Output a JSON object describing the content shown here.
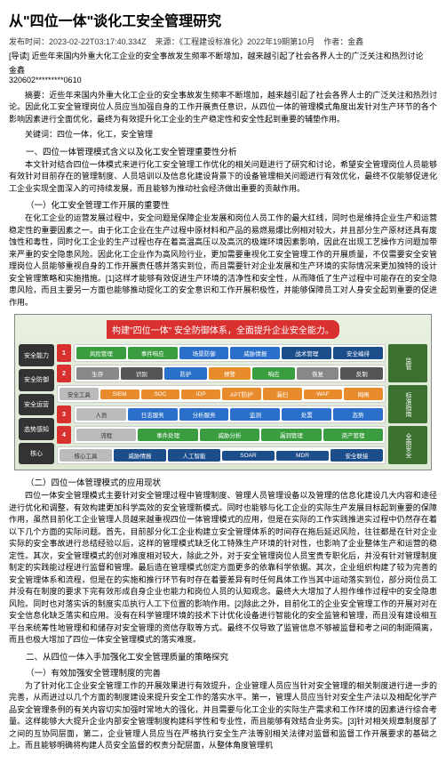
{
  "title": "从\"四位一体\"谈化工安全管理研究",
  "meta": {
    "pubtime_label": "发布时间：",
    "pubtime": "2023-02-22T03:17:40.334Z",
    "source_label": "来源：",
    "source": "《工程建设标准化》2022年19期第10月",
    "author_label": "作者：",
    "author": "金鑫"
  },
  "lead": "[导读] 近些年来国内外重大化工企业的安全事故发生频率不断增加，越来越引起了社会各界人士的广泛关注和热烈讨论",
  "author_info": {
    "name": "金鑫",
    "id": "320602*********0610"
  },
  "abstract": "摘要：近些年来国内外重大化工企业的安全事故发生频率不断增加，越来越引起了社会各界人士的广泛关注和热烈讨论。因此化工安全管理岗位人员应当加强自身的工作开展责任意识，从四位一体的管理模式角度出发针对生产环节的各个影响因素进行全面优化，最终为有效提升化工企业的生产稳定性和安全性起到重要的辅垫作用。",
  "keywords": "关键词：四位一体，化工，安全管理",
  "section1": {
    "title": "一、四位一体管理模式含义以及化工安全管理重要性分析",
    "p1": "本文针对结合四位一体模式来进行化工安全管理工作优化的相关问题进行了研究和讨论，希望安全管理岗位人员能够有效针对目前存在的管理制度、人员培训以及信息化建设背景下的设备管理相关问题进行有效优化，最终不仅能够促进化工企业实现全面深入的可持续发展，而且能够为推动社会经济做出重要的贡献作用。",
    "sub1_title": "（一）化工安全管理工作开展的重要性",
    "sub1_text": "在化工企业的运营发展过程中，安全问题是保障企业发展和岗位人员工作的最大红线，同时也是维持企业生产和运营稳定性的重要因素之一。由于化工企业在生产过程中原材料和产品的易燃易爆比例相对较大，并且部分生产原材还具有废蚀性和毒性，同时化工企业的生产过程也存在着高温高压以及高沉的极端环境因素影响，因此在出现工艺操作方问题加带来严重的安全隐患风险。因此化工企业作为高风险行业，更加需要重视化工安全管理工作的开展质量，不仅需要安全安管理岗位人员能够重视自身的工作开展责任感并落实到位，而且需要针对企业发展和生产环境的实际情况来更加独特的设计安全管理策略和实施措施。[1]这样才能够有效促进生产环境的洁净性和安全性，从而降低了生产过程中可能存在的安全隐患风险，而且主要另一方面也能够推动提化工的安全意识和工作开展积极性，并能够保障员工对人身安全起到重要的促进作用。",
    "sub2_title": "（二）四位一体管理模式的应用现状",
    "sub2_text": "四位一体安全管理模式主要针对安全管理过程中管理制度、管理人员管理设备以及管理的信息化建设几大内容和途径进行优化和调整，有效构建更加科学高效的安全管理新模式。同时也能够与化工企业的实际生产发展目标起到重要的保障作用，虽然目前化工企业管理人员越来越重视四位一体管理模式的应用，但是在实际的工作实践推进实过程中仍然存在着以下几个方面的实际问题。首先，目前部分化工企业构建立安全管理体系的时间存在拖后延迟风险，往往都是在针对企业实际的安全事故进行总结经验以后，这样的管理模式缺乏化工特殊生产环境的针对性，也影响了企业整体生产和运营的稳定性。其次，安全管理模式的创对难度相对较大，除此之外，对于安全管理岗位人员宝贵专职化后，并没有针对管理制度制定的实践能过程进行监督和管理。最后造在管理模式创定方面更多的依靠科学依据。其次，企业组织构建了较为完善的安全管理体系和流程，但是在的实施和推行环节有时存在着要差异有时任何具体工作当其中运动落实到位，部分岗位员工并没有在制度的要求下完有效形成自身企业也能力和岗位人员的认知观念。最终大大增加了人担作维作过程中的安全隐患风险。同时也对落实诉的制度实瓜执行人工下位置的影响作用。[2]除此之外，目前化工的企业安全管理工作的开展对对在安全信息化缺乏落实和应用。没有在科学管理环境的技术下计优化设备进行智能化的安全监管和管理，而且没有建设相互平台来统筹性地管理和和储存对安全管理的资信存取等方式。最终不仅导致了监管信息不够被监督和考之间的制距隔离，而且也极大增加了四位一体安全管理模式的落实难度。"
  },
  "section2": {
    "title": "二、从四位一体入手加强化工安全管理质量的策略探究",
    "sub1_title": "（一）有效加强安全管理制度的完善",
    "sub1_text": "为了针对化工企业安全管理工作的开展效果进行有效提升，企业管理人员应当针对安全管理的相关制度进行进一步的完善，从而进过以几个方面的制度建设来提升安全工作的落实水平。第一，管理人员应当针对安全生产法以及相配化学产品安全管理条例的有关内容切实加强时常地大的强化，并且需要与化工企业的实际生产需求和工作环境的因素进行综合考量。这样能够大大提升企业内部安全管理制度构建科学性和专业性，而且能够有效结合业务实。[3]针对相关规章制度部了之间的互协同层面，第二，企业管理人员应当在严格执行安全生产法等别相关法律对监督和监督工作开展要求的基础之上。而且能够明确将构建人员安全监督的权责分配层面，从整体角度管理机"
  },
  "diagram": {
    "banner": "构建\"四位一体\" 安全防御体系，全面提升企业安全能力。",
    "left_modules": [
      "安全能力",
      "安全防御",
      "安全运营",
      "态势感知",
      "核心"
    ],
    "right_labels": [
      "监管",
      "标准指南",
      "全面安全"
    ],
    "rows": [
      {
        "marker": "1",
        "boxes": [
          {
            "text": "风险管理",
            "cls": "green"
          },
          {
            "text": "事件响应",
            "cls": "green"
          },
          {
            "text": "场景防御",
            "cls": "blue"
          },
          {
            "text": "威胁情报",
            "cls": "blue"
          },
          {
            "text": "战术管理",
            "cls": "dblue"
          },
          {
            "text": "安全编排",
            "cls": "dblue"
          }
        ]
      },
      {
        "marker": "2",
        "boxes": [
          {
            "text": "生存",
            "cls": "grey"
          },
          {
            "text": "识别",
            "cls": "darkgrey"
          },
          {
            "text": "防护",
            "cls": "blue"
          },
          {
            "text": "预警",
            "cls": "orange"
          },
          {
            "text": "响应",
            "cls": "green"
          },
          {
            "text": "恢复",
            "cls": "grey"
          },
          {
            "text": "反制",
            "cls": "darkgrey"
          }
        ]
      },
      {
        "marker": "",
        "boxes": [
          {
            "text": "安全工具",
            "cls": "lgrey"
          },
          {
            "text": "SIEM",
            "cls": "orange"
          },
          {
            "text": "SOC",
            "cls": "orange"
          },
          {
            "text": "IDP",
            "cls": "orange"
          },
          {
            "text": "APT防护",
            "cls": "orange"
          },
          {
            "text": "漏扫",
            "cls": "orange"
          },
          {
            "text": "WAF",
            "cls": "orange"
          },
          {
            "text": "网闸",
            "cls": "orange"
          }
        ]
      },
      {
        "marker": "3",
        "boxes": [
          {
            "text": "人员",
            "cls": "lgrey"
          },
          {
            "text": "日志服务",
            "cls": "blue"
          },
          {
            "text": "分析服务",
            "cls": "blue"
          },
          {
            "text": "监测",
            "cls": "blue"
          },
          {
            "text": "处置",
            "cls": "blue"
          },
          {
            "text": "态势",
            "cls": "blue"
          }
        ]
      },
      {
        "marker": "4",
        "boxes": [
          {
            "text": "流程",
            "cls": "lgrey"
          },
          {
            "text": "事件处理",
            "cls": "green"
          },
          {
            "text": "威胁分析",
            "cls": "green"
          },
          {
            "text": "漏洞管理",
            "cls": "green"
          },
          {
            "text": "资产管理",
            "cls": "green"
          }
        ]
      },
      {
        "marker": "",
        "boxes": [
          {
            "text": "核心工具",
            "cls": "lgrey"
          },
          {
            "text": "威胁情报",
            "cls": "dblue"
          },
          {
            "text": "人工智能",
            "cls": "dblue"
          },
          {
            "text": "SOAR",
            "cls": "dblue"
          },
          {
            "text": "MDR",
            "cls": "dblue"
          },
          {
            "text": "安全联接",
            "cls": "dblue"
          }
        ]
      }
    ]
  }
}
